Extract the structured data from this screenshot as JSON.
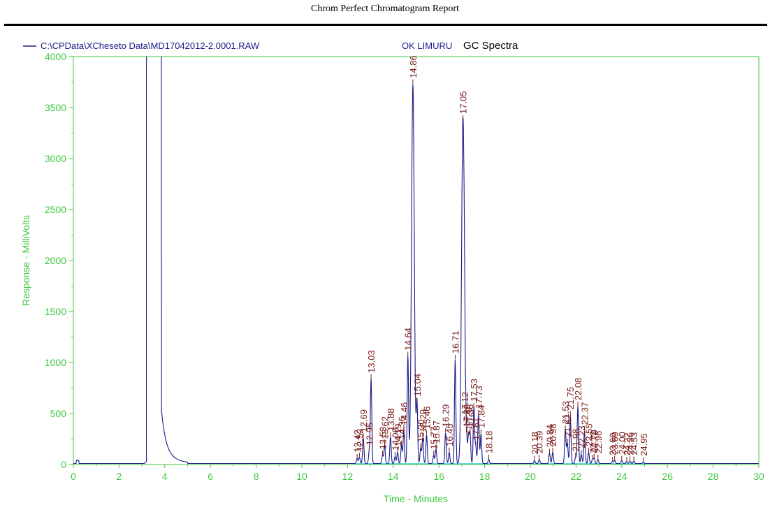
{
  "report_title": "Chrom Perfect Chromatogram Report",
  "legend": {
    "file": "C:\\CPData\\XCheseto Data\\MD17042012-2.0001.RAW",
    "sample": "OK LIMURU",
    "title": "GC Spectra"
  },
  "colors": {
    "axis": "#3ec93e",
    "trace": "#1a1a8c",
    "baseline": "#2fcfcf",
    "peak_label": "#7a1a1a"
  },
  "chart_data": {
    "type": "line",
    "xlabel": "Time - Minutes",
    "ylabel": "Response - MilliVolts",
    "xlim": [
      0,
      30
    ],
    "ylim": [
      0,
      4000
    ],
    "x_ticks": [
      "0",
      "2",
      "4",
      "6",
      "8",
      "10",
      "12",
      "14",
      "16",
      "18",
      "20",
      "22",
      "24",
      "26",
      "28",
      "30"
    ],
    "y_ticks": [
      "0",
      "500",
      "1000",
      "1500",
      "2000",
      "2500",
      "3000",
      "3500",
      "4000"
    ],
    "grid": false,
    "solvent_peak": {
      "start": 3.2,
      "end": 3.85,
      "height": 4000
    },
    "peaks": [
      {
        "rt": 12.42,
        "height": 50,
        "label": "12.42"
      },
      {
        "rt": 12.52,
        "height": 60,
        "label": "12.52"
      },
      {
        "rt": 12.69,
        "height": 250,
        "label": "12.69"
      },
      {
        "rt": 12.95,
        "height": 120,
        "label": "12.95"
      },
      {
        "rt": 13.03,
        "height": 830,
        "label": "13.03"
      },
      {
        "rt": 13.53,
        "height": 80,
        "label": "13.53"
      },
      {
        "rt": 13.62,
        "height": 180,
        "label": "13.62"
      },
      {
        "rt": 13.88,
        "height": 260,
        "label": "13.88"
      },
      {
        "rt": 14.08,
        "height": 70,
        "label": "14.08"
      },
      {
        "rt": 14.19,
        "height": 110,
        "label": "14.19"
      },
      {
        "rt": 14.36,
        "height": 180,
        "label": "14.36"
      },
      {
        "rt": 14.46,
        "height": 320,
        "label": "14.46"
      },
      {
        "rt": 14.64,
        "height": 1050,
        "label": "14.64"
      },
      {
        "rt": 14.86,
        "height": 3720,
        "label": "14.86"
      },
      {
        "rt": 15.04,
        "height": 600,
        "label": "15.04"
      },
      {
        "rt": 15.2,
        "height": 150,
        "label": "15.20"
      },
      {
        "rt": 15.29,
        "height": 250,
        "label": "15.29"
      },
      {
        "rt": 15.46,
        "height": 280,
        "label": "15.46"
      },
      {
        "rt": 15.77,
        "height": 80,
        "label": "15.77"
      },
      {
        "rt": 15.87,
        "height": 140,
        "label": "15.87"
      },
      {
        "rt": 16.29,
        "height": 300,
        "label": "16.29"
      },
      {
        "rt": 16.45,
        "height": 110,
        "label": "16.45"
      },
      {
        "rt": 16.71,
        "height": 1020,
        "label": "16.71"
      },
      {
        "rt": 17.05,
        "height": 3370,
        "label": "17.05"
      },
      {
        "rt": 17.12,
        "height": 420,
        "label": "17.12"
      },
      {
        "rt": 17.2,
        "height": 300,
        "label": "17.20"
      },
      {
        "rt": 17.29,
        "height": 270,
        "label": "17.29"
      },
      {
        "rt": 17.36,
        "height": 300,
        "label": "17.36"
      },
      {
        "rt": 17.53,
        "height": 550,
        "label": "17.53"
      },
      {
        "rt": 17.61,
        "height": 170,
        "label": "17.61"
      },
      {
        "rt": 17.73,
        "height": 480,
        "label": "17.73"
      },
      {
        "rt": 17.84,
        "height": 290,
        "label": "17.84"
      },
      {
        "rt": 18.18,
        "height": 40,
        "label": "18.18"
      },
      {
        "rt": 20.18,
        "height": 30,
        "label": "20.18"
      },
      {
        "rt": 20.39,
        "height": 40,
        "label": "20.39"
      },
      {
        "rt": 20.84,
        "height": 100,
        "label": "20.84"
      },
      {
        "rt": 20.98,
        "height": 110,
        "label": "20.98"
      },
      {
        "rt": 21.53,
        "height": 330,
        "label": "21.53"
      },
      {
        "rt": 21.62,
        "height": 200,
        "label": "21.62"
      },
      {
        "rt": 21.75,
        "height": 470,
        "label": "21.75"
      },
      {
        "rt": 21.98,
        "height": 60,
        "label": "21.98"
      },
      {
        "rt": 22.08,
        "height": 560,
        "label": "22.08"
      },
      {
        "rt": 22.23,
        "height": 90,
        "label": "22.23"
      },
      {
        "rt": 22.37,
        "height": 320,
        "label": "22.37"
      },
      {
        "rt": 22.55,
        "height": 110,
        "label": "22.55"
      },
      {
        "rt": 22.72,
        "height": 40,
        "label": "22.72"
      },
      {
        "rt": 22.79,
        "height": 50,
        "label": "22.79"
      },
      {
        "rt": 22.96,
        "height": 40,
        "label": "22.96"
      },
      {
        "rt": 23.6,
        "height": 20,
        "label": "23.60"
      },
      {
        "rt": 23.69,
        "height": 30,
        "label": "23.69"
      },
      {
        "rt": 24.0,
        "height": 30,
        "label": "24.00"
      },
      {
        "rt": 24.22,
        "height": 20,
        "label": "24.22"
      },
      {
        "rt": 24.36,
        "height": 25,
        "label": "24.36"
      },
      {
        "rt": 24.53,
        "height": 25,
        "label": "24.53"
      },
      {
        "rt": 24.95,
        "height": 15,
        "label": "24.95"
      }
    ]
  }
}
